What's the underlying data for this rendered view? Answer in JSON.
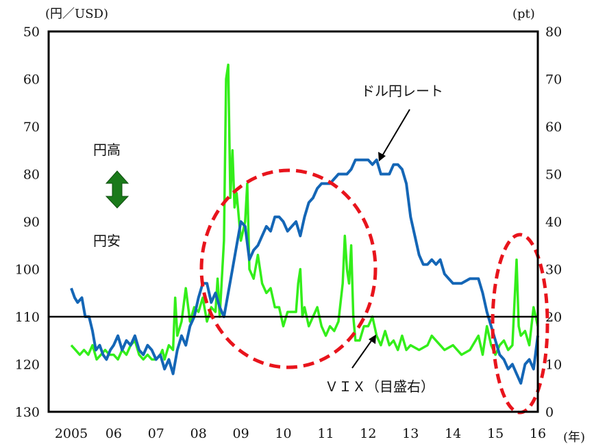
{
  "chart_data": {
    "type": "line",
    "left_axis_unit": "(円／USD)",
    "right_axis_unit": "(pt)",
    "x_unit": "(年)",
    "x_tick_labels": [
      "2005",
      "06",
      "07",
      "08",
      "09",
      "10",
      "11",
      "12",
      "13",
      "14",
      "15",
      "16"
    ],
    "left_axis": {
      "ticks": [
        50,
        60,
        70,
        80,
        90,
        100,
        110,
        120,
        130
      ],
      "range": [
        50,
        130
      ],
      "inverted": true
    },
    "right_axis": {
      "ticks": [
        80,
        70,
        60,
        50,
        40,
        30,
        20,
        10,
        0
      ],
      "range": [
        0,
        80
      ]
    },
    "reference_line": {
      "axis": "left",
      "value": 110
    },
    "annotations": {
      "appreciation": "円高",
      "depreciation": "円安",
      "usdjpy_label": "ドル円レート",
      "vix_label": "ＶＩＸ（目盛右）"
    },
    "series": [
      {
        "name": "ドル円レート",
        "axis": "left",
        "color": "#1466b6",
        "x": [
          2005.0,
          2005.08,
          2005.15,
          2005.25,
          2005.33,
          2005.42,
          2005.5,
          2005.58,
          2005.67,
          2005.75,
          2005.83,
          2005.92,
          2006.0,
          2006.1,
          2006.2,
          2006.3,
          2006.4,
          2006.5,
          2006.6,
          2006.7,
          2006.8,
          2006.9,
          2007.0,
          2007.1,
          2007.2,
          2007.3,
          2007.4,
          2007.5,
          2007.6,
          2007.7,
          2007.8,
          2007.9,
          2008.0,
          2008.1,
          2008.2,
          2008.3,
          2008.4,
          2008.5,
          2008.6,
          2008.7,
          2008.8,
          2008.9,
          2009.0,
          2009.1,
          2009.2,
          2009.3,
          2009.4,
          2009.5,
          2009.6,
          2009.7,
          2009.8,
          2009.9,
          2010.0,
          2010.1,
          2010.2,
          2010.3,
          2010.4,
          2010.5,
          2010.6,
          2010.7,
          2010.8,
          2010.9,
          2011.0,
          2011.1,
          2011.2,
          2011.3,
          2011.4,
          2011.5,
          2011.6,
          2011.7,
          2011.8,
          2011.9,
          2012.0,
          2012.1,
          2012.2,
          2012.3,
          2012.4,
          2012.5,
          2012.6,
          2012.7,
          2012.8,
          2012.9,
          2013.0,
          2013.1,
          2013.2,
          2013.3,
          2013.4,
          2013.5,
          2013.6,
          2013.7,
          2013.8,
          2013.9,
          2014.0,
          2014.2,
          2014.4,
          2014.6,
          2014.7,
          2014.8,
          2014.9,
          2015.0,
          2015.1,
          2015.2,
          2015.3,
          2015.4,
          2015.5,
          2015.6,
          2015.7,
          2015.8,
          2015.9,
          2016.0
        ],
        "values": [
          104,
          106,
          107,
          106,
          110,
          110,
          113,
          117,
          116,
          118,
          119,
          117,
          116,
          114,
          117,
          115,
          116,
          114,
          117,
          118,
          116,
          117,
          119,
          118,
          121,
          119,
          122,
          117,
          114,
          116,
          112,
          110,
          106,
          103,
          103,
          107,
          105,
          108,
          110,
          105,
          100,
          95,
          90,
          91,
          98,
          96,
          95,
          93,
          91,
          92,
          89,
          89,
          90,
          92,
          91,
          90,
          93,
          89,
          86,
          85,
          83,
          82,
          82,
          82,
          81,
          80,
          80,
          80,
          79,
          77,
          77,
          77,
          77,
          78,
          77,
          80,
          80,
          80,
          78,
          78,
          79,
          82,
          89,
          93,
          97,
          99,
          99,
          98,
          99,
          98,
          101,
          102,
          103,
          103,
          102,
          102,
          105,
          109,
          112,
          115,
          118,
          119,
          121,
          120,
          122,
          124,
          120,
          119,
          121,
          114
        ]
      },
      {
        "name": "ＶＩＸ（目盛右）",
        "axis": "right",
        "color": "#33ee1a",
        "x": [
          2005.0,
          2005.1,
          2005.2,
          2005.3,
          2005.4,
          2005.5,
          2005.6,
          2005.7,
          2005.8,
          2005.9,
          2006.0,
          2006.1,
          2006.2,
          2006.3,
          2006.4,
          2006.5,
          2006.6,
          2006.7,
          2006.8,
          2006.9,
          2007.0,
          2007.1,
          2007.15,
          2007.2,
          2007.3,
          2007.4,
          2007.45,
          2007.5,
          2007.6,
          2007.7,
          2007.8,
          2007.9,
          2008.0,
          2008.1,
          2008.2,
          2008.3,
          2008.4,
          2008.45,
          2008.5,
          2008.6,
          2008.65,
          2008.7,
          2008.75,
          2008.8,
          2008.85,
          2008.9,
          2009.0,
          2009.1,
          2009.15,
          2009.2,
          2009.3,
          2009.4,
          2009.5,
          2009.6,
          2009.7,
          2009.8,
          2009.9,
          2010.0,
          2010.1,
          2010.2,
          2010.3,
          2010.35,
          2010.4,
          2010.45,
          2010.5,
          2010.6,
          2010.7,
          2010.8,
          2010.9,
          2011.0,
          2011.1,
          2011.2,
          2011.3,
          2011.4,
          2011.45,
          2011.5,
          2011.55,
          2011.6,
          2011.65,
          2011.7,
          2011.8,
          2011.9,
          2012.0,
          2012.1,
          2012.2,
          2012.3,
          2012.4,
          2012.5,
          2012.6,
          2012.7,
          2012.8,
          2012.9,
          2013.0,
          2013.2,
          2013.4,
          2013.5,
          2013.6,
          2013.8,
          2014.0,
          2014.2,
          2014.4,
          2014.6,
          2014.7,
          2014.8,
          2014.9,
          2015.0,
          2015.1,
          2015.2,
          2015.3,
          2015.4,
          2015.5,
          2015.55,
          2015.6,
          2015.7,
          2015.8,
          2015.9,
          2016.0
        ],
        "values": [
          14,
          13,
          12,
          13,
          12,
          14,
          11,
          12,
          13,
          12,
          12,
          11,
          13,
          12,
          14,
          15,
          12,
          11,
          12,
          11,
          11,
          12,
          13,
          11,
          14,
          13,
          24,
          16,
          19,
          26,
          19,
          22,
          21,
          24,
          19,
          22,
          21,
          28,
          20,
          36,
          70,
          73,
          45,
          55,
          43,
          46,
          36,
          40,
          48,
          30,
          28,
          33,
          27,
          25,
          26,
          22,
          22,
          18,
          21,
          21,
          21,
          27,
          30,
          20,
          22,
          18,
          20,
          22,
          18,
          16,
          18,
          17,
          19,
          27,
          37,
          30,
          27,
          35,
          20,
          15,
          15,
          18,
          18,
          20,
          16,
          14,
          17,
          14,
          15,
          13,
          16,
          13,
          14,
          13,
          14,
          16,
          15,
          13,
          14,
          12,
          13,
          16,
          12,
          18,
          14,
          12,
          14,
          15,
          13,
          14,
          32,
          18,
          16,
          17,
          14,
          22,
          18
        ]
      }
    ]
  }
}
